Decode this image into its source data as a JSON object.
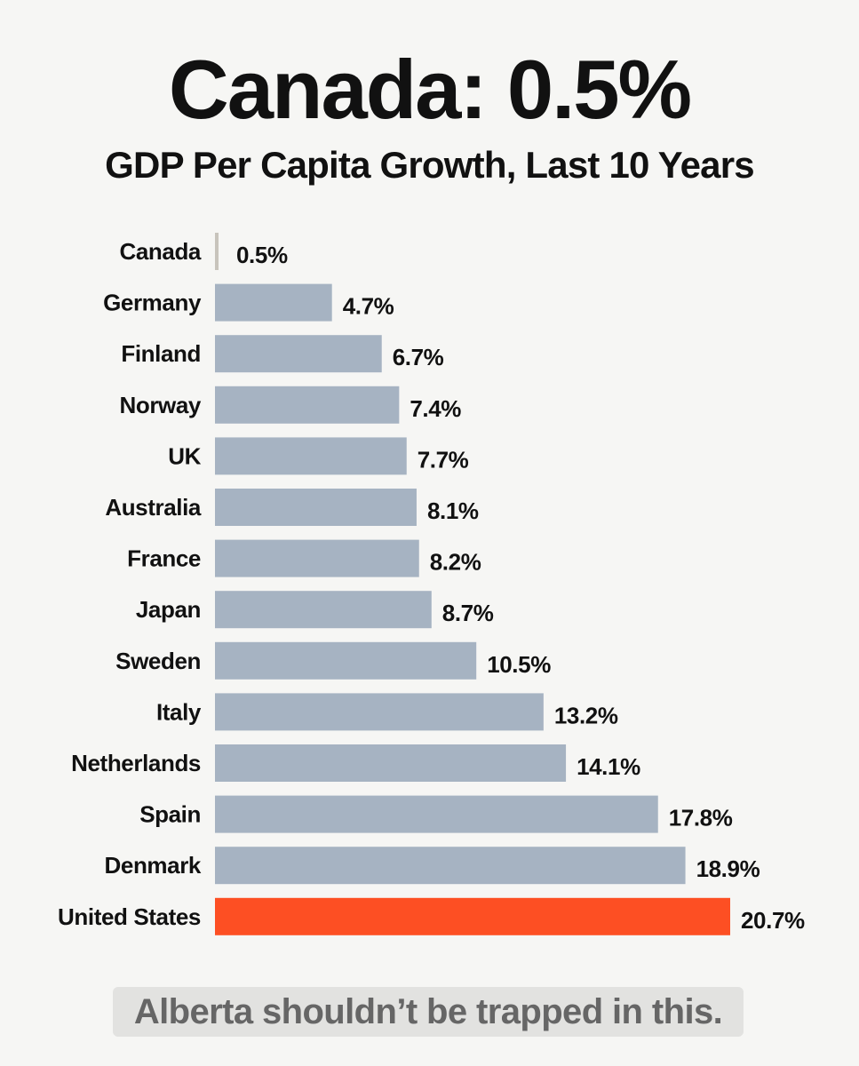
{
  "header": {
    "title": "Canada: 0.5%",
    "subtitle": "GDP Per Capita Growth, Last 10 Years"
  },
  "footer": {
    "text": "Alberta shouldn’t be trapped in this."
  },
  "colors": {
    "default_bar": "#a6b3c2",
    "canada_bar": "#c8c4bc",
    "highlight_bar": "#fd4f23",
    "label_text": "#111111",
    "background": "#f6f6f4"
  },
  "chart_data": {
    "type": "bar",
    "orientation": "horizontal",
    "title": "Canada: 0.5%",
    "subtitle": "GDP Per Capita Growth, Last 10 Years",
    "xlabel": "",
    "ylabel": "",
    "xlim": [
      0,
      20.7
    ],
    "grid": false,
    "unit": "%",
    "categories": [
      "Canada",
      "Germany",
      "Finland",
      "Norway",
      "UK",
      "Australia",
      "France",
      "Japan",
      "Sweden",
      "Italy",
      "Netherlands",
      "Spain",
      "Denmark",
      "United States"
    ],
    "values": [
      0.5,
      4.7,
      6.7,
      7.4,
      7.7,
      8.1,
      8.2,
      8.7,
      10.5,
      13.2,
      14.1,
      17.8,
      18.9,
      20.7
    ],
    "labels": [
      "0.5%",
      "4.7%",
      "6.7%",
      "7.4%",
      "7.7%",
      "8.1%",
      "8.2%",
      "8.7%",
      "10.5%",
      "13.2%",
      "14.1%",
      "17.8%",
      "18.9%",
      "20.7%"
    ],
    "highlight": {
      "Canada": "canada_bar",
      "United States": "highlight_bar"
    }
  }
}
